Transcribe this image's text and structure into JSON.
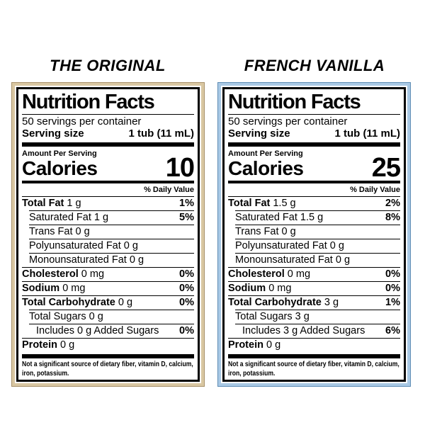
{
  "page": {
    "background_color": "#ffffff"
  },
  "labels": [
    {
      "title": "THE ORIGINAL",
      "accent_color": "#d9c7a2",
      "accent_edge_color": "#a8916a",
      "heading": "Nutrition Facts",
      "servings_line": "50 servings per container",
      "serving_size_label": "Serving size",
      "serving_size_value": "1 tub (11 mL)",
      "amount_per_serving": "Amount Per Serving",
      "calories_label": "Calories",
      "calories_value": "10",
      "daily_value_header": "% Daily Value",
      "rows": [
        {
          "name": "Total Fat",
          "amount": "1 g",
          "dv": "1%",
          "bold": true,
          "indent": 0
        },
        {
          "name": "Saturated Fat",
          "amount": "1 g",
          "dv": "5%",
          "bold": false,
          "indent": 1
        },
        {
          "name": "Trans Fat",
          "amount": "0 g",
          "dv": "",
          "bold": false,
          "indent": 1
        },
        {
          "name": "Polyunsaturated Fat",
          "amount": "0 g",
          "dv": "",
          "bold": false,
          "indent": 1
        },
        {
          "name": "Monounsaturated Fat",
          "amount": "0 g",
          "dv": "",
          "bold": false,
          "indent": 1
        },
        {
          "name": "Cholesterol",
          "amount": "0 mg",
          "dv": "0%",
          "bold": true,
          "indent": 0
        },
        {
          "name": "Sodium",
          "amount": "0 mg",
          "dv": "0%",
          "bold": true,
          "indent": 0
        },
        {
          "name": "Total Carbohydrate",
          "amount": "0 g",
          "dv": "0%",
          "bold": true,
          "indent": 0
        },
        {
          "name": "Total Sugars",
          "amount": "0 g",
          "dv": "",
          "bold": false,
          "indent": 1
        },
        {
          "name": "Includes 0 g Added Sugars",
          "amount": "",
          "dv": "0%",
          "bold": false,
          "indent": 2
        },
        {
          "name": "Protein",
          "amount": "0 g",
          "dv": "",
          "bold": true,
          "indent": 0
        }
      ],
      "footnote": "Not a significant source of dietary fiber, vitamin D, calcium, iron, potassium."
    },
    {
      "title": "FRENCH VANILLA",
      "accent_color": "#a9c9e5",
      "accent_edge_color": "#5e8cb4",
      "heading": "Nutrition Facts",
      "servings_line": "50 servings per container",
      "serving_size_label": "Serving size",
      "serving_size_value": "1 tub (11 mL)",
      "amount_per_serving": "Amount Per Serving",
      "calories_label": "Calories",
      "calories_value": "25",
      "daily_value_header": "% Daily Value",
      "rows": [
        {
          "name": "Total Fat",
          "amount": "1.5 g",
          "dv": "2%",
          "bold": true,
          "indent": 0
        },
        {
          "name": "Saturated Fat",
          "amount": "1.5 g",
          "dv": "8%",
          "bold": false,
          "indent": 1
        },
        {
          "name": "Trans Fat",
          "amount": "0 g",
          "dv": "",
          "bold": false,
          "indent": 1
        },
        {
          "name": "Polyunsaturated Fat",
          "amount": "0 g",
          "dv": "",
          "bold": false,
          "indent": 1
        },
        {
          "name": "Monounsaturated Fat",
          "amount": "0 g",
          "dv": "",
          "bold": false,
          "indent": 1
        },
        {
          "name": "Cholesterol",
          "amount": "0 mg",
          "dv": "0%",
          "bold": true,
          "indent": 0
        },
        {
          "name": "Sodium",
          "amount": "0 mg",
          "dv": "0%",
          "bold": true,
          "indent": 0
        },
        {
          "name": "Total Carbohydrate",
          "amount": "3 g",
          "dv": "1%",
          "bold": true,
          "indent": 0
        },
        {
          "name": "Total Sugars",
          "amount": "3 g",
          "dv": "",
          "bold": false,
          "indent": 1
        },
        {
          "name": "Includes 3 g Added Sugars",
          "amount": "",
          "dv": "6%",
          "bold": false,
          "indent": 2
        },
        {
          "name": "Protein",
          "amount": "0 g",
          "dv": "",
          "bold": true,
          "indent": 0
        }
      ],
      "footnote": "Not a significant source of dietary fiber, vitamin D, calcium, iron, potassium."
    }
  ]
}
